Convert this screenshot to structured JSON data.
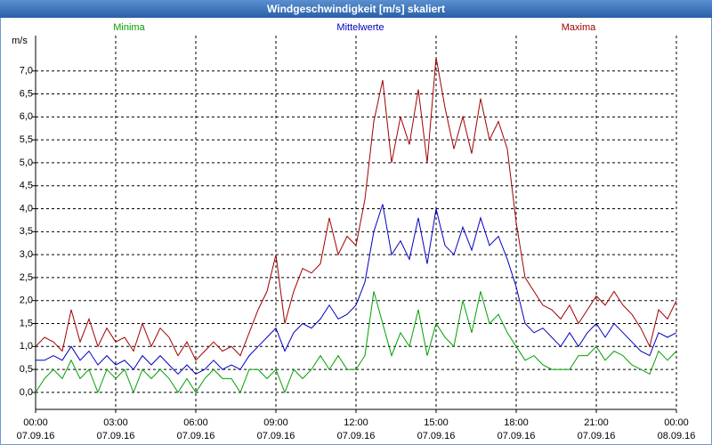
{
  "chart_data": {
    "type": "line",
    "title": "Windgeschwindigkeit [m/s] skaliert",
    "y_unit": "m/s",
    "x": [
      0,
      20,
      40,
      60,
      80,
      100,
      120,
      140,
      160,
      180,
      200,
      220,
      240,
      260,
      280,
      300,
      320,
      340,
      360,
      380,
      400,
      420,
      440,
      460,
      480,
      500,
      520,
      540,
      560,
      580,
      600,
      620,
      640,
      660,
      680,
      700,
      720,
      740,
      760,
      780,
      800,
      820,
      840,
      860,
      880,
      900,
      920,
      940,
      960,
      980,
      1000,
      1020,
      1040,
      1060,
      1080,
      1100,
      1120,
      1140,
      1160,
      1180,
      1200,
      1220,
      1240,
      1260,
      1280,
      1300,
      1320,
      1340,
      1360,
      1380,
      1400,
      1420,
      1440
    ],
    "series": [
      {
        "name": "Minima",
        "color": "#00a000",
        "values": [
          0.0,
          0.3,
          0.5,
          0.3,
          0.7,
          0.3,
          0.5,
          0.0,
          0.5,
          0.3,
          0.5,
          0.0,
          0.5,
          0.3,
          0.5,
          0.3,
          0.0,
          0.3,
          0.0,
          0.3,
          0.5,
          0.3,
          0.3,
          0.0,
          0.5,
          0.5,
          0.3,
          0.5,
          0.0,
          0.5,
          0.3,
          0.5,
          0.8,
          0.5,
          0.8,
          0.5,
          0.5,
          0.8,
          2.2,
          1.5,
          0.8,
          1.3,
          1.0,
          1.8,
          0.8,
          1.5,
          1.2,
          1.0,
          2.0,
          1.3,
          2.2,
          1.5,
          1.7,
          1.3,
          1.0,
          0.7,
          0.8,
          0.6,
          0.5,
          0.5,
          0.5,
          0.8,
          0.8,
          1.0,
          0.7,
          0.9,
          0.8,
          0.6,
          0.5,
          0.4,
          0.9,
          0.7,
          0.9
        ]
      },
      {
        "name": "Mittelwerte",
        "color": "#0000c0",
        "values": [
          0.7,
          0.7,
          0.8,
          0.7,
          1.0,
          0.7,
          0.9,
          0.6,
          0.8,
          0.6,
          0.7,
          0.5,
          0.8,
          0.6,
          0.8,
          0.6,
          0.4,
          0.6,
          0.4,
          0.5,
          0.7,
          0.5,
          0.6,
          0.5,
          0.8,
          1.0,
          1.2,
          1.4,
          0.9,
          1.3,
          1.5,
          1.4,
          1.6,
          1.9,
          1.6,
          1.7,
          1.9,
          2.4,
          3.5,
          4.1,
          3.0,
          3.3,
          2.9,
          3.8,
          2.8,
          4.0,
          3.2,
          3.0,
          3.6,
          3.1,
          3.8,
          3.2,
          3.4,
          2.9,
          2.3,
          1.5,
          1.3,
          1.4,
          1.2,
          1.0,
          1.3,
          1.0,
          1.3,
          1.5,
          1.2,
          1.5,
          1.3,
          1.1,
          0.9,
          0.8,
          1.3,
          1.2,
          1.3
        ]
      },
      {
        "name": "Maxima",
        "color": "#a00000",
        "values": [
          1.0,
          1.2,
          1.1,
          0.9,
          1.8,
          1.1,
          1.6,
          1.0,
          1.4,
          1.1,
          1.2,
          0.9,
          1.5,
          1.0,
          1.4,
          1.2,
          0.8,
          1.1,
          0.7,
          0.9,
          1.1,
          0.9,
          1.0,
          0.8,
          1.3,
          1.8,
          2.2,
          3.0,
          1.5,
          2.2,
          2.7,
          2.6,
          2.8,
          3.8,
          3.0,
          3.4,
          3.2,
          4.2,
          5.9,
          6.8,
          5.0,
          6.0,
          5.4,
          6.6,
          5.0,
          7.3,
          6.2,
          5.3,
          6.0,
          5.2,
          6.4,
          5.5,
          5.9,
          5.3,
          3.7,
          2.5,
          2.2,
          1.9,
          1.8,
          1.6,
          1.9,
          1.5,
          1.8,
          2.1,
          1.9,
          2.2,
          1.9,
          1.7,
          1.4,
          1.0,
          1.8,
          1.6,
          2.0
        ]
      }
    ],
    "xlim": [
      0,
      1440
    ],
    "xticks": [
      {
        "value": 0,
        "label": "00:00"
      },
      {
        "value": 180,
        "label": "03:00"
      },
      {
        "value": 360,
        "label": "06:00"
      },
      {
        "value": 540,
        "label": "09:00"
      },
      {
        "value": 720,
        "label": "12:00"
      },
      {
        "value": 900,
        "label": "15:00"
      },
      {
        "value": 1080,
        "label": "18:00"
      },
      {
        "value": 1260,
        "label": "21:00"
      },
      {
        "value": 1440,
        "label": "00:00"
      }
    ],
    "xtick_dates": [
      "07.09.16",
      "07.09.16",
      "07.09.16",
      "07.09.16",
      "07.09.16",
      "07.09.16",
      "07.09.16",
      "07.09.16",
      "08.09.16"
    ],
    "ylim": [
      -0.37,
      7.77
    ],
    "yticks": [
      {
        "value": 0,
        "label": "0,0"
      },
      {
        "value": 0.5,
        "label": "0,5"
      },
      {
        "value": 1,
        "label": "1,0"
      },
      {
        "value": 1.5,
        "label": "1,5"
      },
      {
        "value": 2,
        "label": "2,0"
      },
      {
        "value": 2.5,
        "label": "2,5"
      },
      {
        "value": 3,
        "label": "3,0"
      },
      {
        "value": 3.5,
        "label": "3,5"
      },
      {
        "value": 4,
        "label": "4,0"
      },
      {
        "value": 4.5,
        "label": "4,5"
      },
      {
        "value": 5,
        "label": "5,0"
      },
      {
        "value": 5.5,
        "label": "5,5"
      },
      {
        "value": 6,
        "label": "6,0"
      },
      {
        "value": 6.5,
        "label": "6,5"
      },
      {
        "value": 7,
        "label": "7,0"
      }
    ],
    "grid": true
  }
}
